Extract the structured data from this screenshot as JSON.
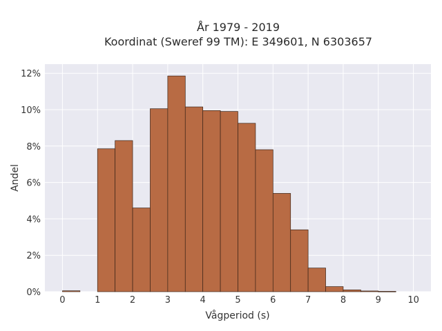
{
  "chart_data": {
    "type": "bar",
    "title_lines": [
      "År 1979 - 2019",
      "Koordinat (Sweref 99 TM): E 349601, N 6303657"
    ],
    "xlabel": "Vågperiod (s)",
    "ylabel": "Andel",
    "bin_width": 0.5,
    "bin_starts": [
      0,
      0.5,
      1,
      1.5,
      2,
      2.5,
      3,
      3.5,
      4,
      4.5,
      5,
      5.5,
      6,
      6.5,
      7,
      7.5,
      8,
      8.5,
      9,
      9.5
    ],
    "values": [
      0.05,
      0,
      7.85,
      8.3,
      4.6,
      10.05,
      11.85,
      10.15,
      9.95,
      9.9,
      9.25,
      7.8,
      5.4,
      3.4,
      1.3,
      0.28,
      0.1,
      0.04,
      0.02,
      0
    ],
    "xlim": [
      -0.5,
      10.5
    ],
    "ylim": [
      0,
      12.5
    ],
    "xticks": [
      0,
      1,
      2,
      3,
      4,
      5,
      6,
      7,
      8,
      9,
      10
    ],
    "yticks": [
      0,
      2,
      4,
      6,
      8,
      10,
      12
    ],
    "ytick_labels": [
      "0%",
      "2%",
      "4%",
      "6%",
      "8%",
      "10%",
      "12%"
    ],
    "colors": {
      "bar_fill": "#b86b44",
      "bar_stroke": "#3a2418",
      "plot_bg": "#e9e9f1",
      "grid": "#ffffff"
    },
    "grid": true
  }
}
